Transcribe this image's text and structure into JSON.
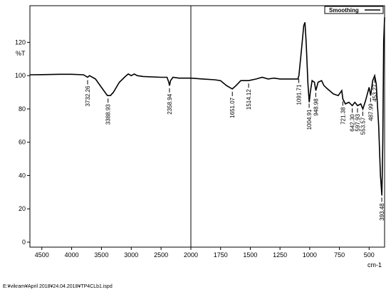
{
  "chart_data": {
    "type": "line",
    "x": [
      4700,
      4500,
      4200,
      4000,
      3800,
      3732,
      3700,
      3600,
      3500,
      3400,
      3350,
      3300,
      3200,
      3100,
      3050,
      3000,
      2950,
      2900,
      2800,
      2500,
      2400,
      2370,
      2358,
      2340,
      2300,
      2200,
      2100,
      2000,
      1900,
      1800,
      1750,
      1700,
      1651,
      1620,
      1580,
      1514,
      1450,
      1400,
      1350,
      1300,
      1250,
      1200,
      1150,
      1100,
      1091,
      1070,
      1050,
      1040,
      1030,
      1015,
      1004,
      995,
      980,
      960,
      948,
      930,
      900,
      880,
      850,
      800,
      760,
      730,
      721,
      700,
      670,
      642,
      620,
      597,
      570,
      553,
      530,
      500,
      487,
      470,
      453,
      440,
      420,
      405,
      393,
      385,
      378,
      370
    ],
    "series": [
      {
        "name": "Smoothing",
        "color": "#000000",
        "values": [
          100.5,
          100.6,
          100.8,
          100.8,
          100.5,
          99,
          100,
          98,
          93,
          88,
          88,
          90,
          96,
          99.5,
          101,
          100,
          101,
          100,
          99.5,
          99,
          99,
          96,
          94,
          97,
          99,
          98.5,
          98.5,
          98.5,
          98,
          97.5,
          97,
          94,
          92,
          94,
          97,
          97,
          98,
          99,
          98,
          98.5,
          98,
          98,
          98,
          98,
          100,
          115,
          130,
          132,
          120,
          95,
          84,
          90,
          97,
          96,
          91,
          96,
          97,
          94,
          92,
          89,
          88,
          91,
          86,
          83,
          84,
          82,
          84,
          82,
          83,
          80,
          85,
          93,
          88,
          97,
          100,
          95,
          70,
          40,
          28,
          60,
          120,
          135
        ]
      }
    ],
    "peak_labels": [
      3732.26,
      3388.93,
      2358.94,
      1651.07,
      1514.12,
      1091.71,
      1004.91,
      948.98,
      721.38,
      {
        "value": 642.3,
        "label": "642.30"
      },
      597.93,
      553.57,
      487.99,
      453.27,
      393.48
    ],
    "xlim": [
      4700,
      370
    ],
    "xbreak": 2000,
    "xticks": [
      4500,
      4000,
      3500,
      3000,
      2500,
      2000,
      1750,
      1500,
      1250,
      1000,
      750,
      500
    ],
    "ylim": [
      -3,
      142
    ],
    "yticks": [
      0,
      20,
      40,
      60,
      80,
      100,
      120
    ],
    "ylabel": "%T",
    "xlabel": "cm-1",
    "footer": "E:¥vikram¥April 2018¥24.04.2018¥TP4CLb1.ispd"
  }
}
